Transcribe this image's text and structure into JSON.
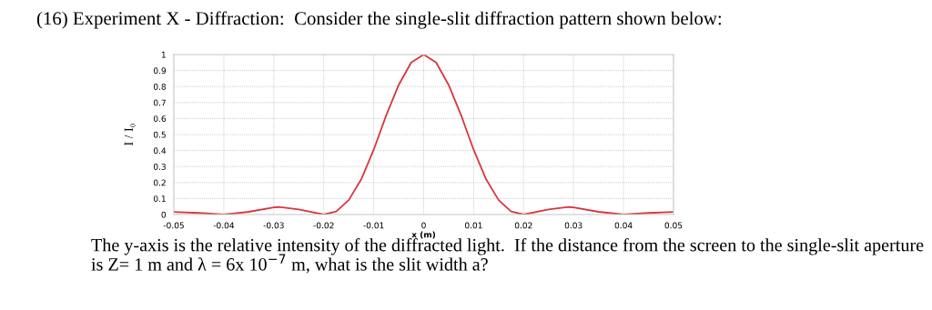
{
  "chart_data": {
    "type": "line",
    "title": "(16) Experiment X - Diffraction:  Consider the single-slit diffraction pattern shown below:",
    "xlabel": "x (m)",
    "ylabel": "I / I₀",
    "annotations": [
      "The y-axis is the relative intensity of the diffracted light.  If the distance from the screen to the single-slit aperture is Z= 1 m and λ = 6x 10$^{−7}$ m, what is the slit width a?"
    ],
    "x": [
      -0.05,
      -0.045,
      -0.04,
      -0.035,
      -0.03,
      -0.029,
      -0.025,
      -0.02,
      -0.0175,
      -0.015,
      -0.0125,
      -0.01,
      -0.0075,
      -0.005,
      -0.0025,
      0,
      0.0025,
      0.005,
      0.0075,
      0.01,
      0.0125,
      0.015,
      0.0175,
      0.02,
      0.025,
      0.029,
      0.03,
      0.035,
      0.04,
      0.045,
      0.05
    ],
    "series": [
      {
        "color": "#d9363e",
        "values": [
          0.016,
          0.01,
          0,
          0.017,
          0.045,
          0.047,
          0.032,
          0,
          0.019,
          0.09,
          0.22,
          0.405,
          0.62,
          0.81,
          0.95,
          1,
          0.95,
          0.81,
          0.62,
          0.405,
          0.22,
          0.09,
          0.019,
          0,
          0.032,
          0.047,
          0.045,
          0.017,
          0,
          0.01,
          0.016
        ]
      }
    ],
    "xlim": [
      -0.05,
      0.05
    ],
    "xticks": [
      -0.05,
      -0.04,
      -0.03,
      -0.02,
      -0.01,
      0,
      0.01,
      0.02,
      0.03,
      0.04,
      0.05
    ],
    "ylim": [
      0,
      1
    ],
    "yticks": [
      0,
      0.1,
      0.2,
      0.3,
      0.4,
      0.5,
      0.6,
      0.7,
      0.8,
      0.9,
      1
    ],
    "grid": true,
    "marker": "none",
    "line_style": "solid"
  }
}
